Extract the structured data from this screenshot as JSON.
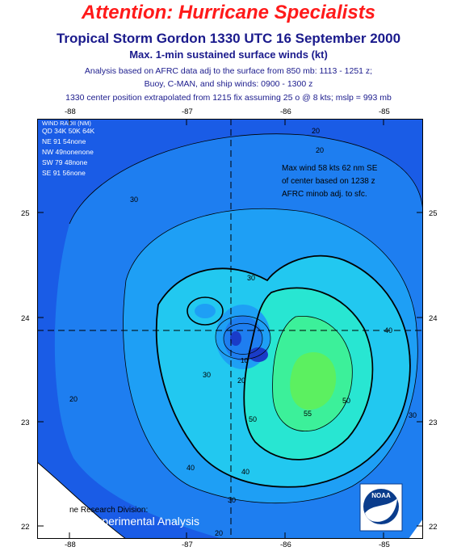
{
  "header": {
    "attention": "Attention:  Hurricane Specialists",
    "title": "Tropical Storm Gordon 1330 UTC 16 September 2000",
    "subtitle": "Max. 1-min sustained surface winds (kt)",
    "line1": "Analysis based on AFRC data adj to the surface from 850 mb: 1113 - 1251 z;",
    "line2": "Buoy, C-MAN, and ship winds: 0900 - 1300 z",
    "line3": "1330 center position extrapolated from 1215 fix assuming 25 o @ 8 kts; mslp = 993 mb"
  },
  "axes": {
    "lon_top": [
      "-88",
      "-87",
      "-86",
      "-85"
    ],
    "lon_bottom": [
      "-88",
      "-87",
      "-86",
      "-85"
    ],
    "lat_left": [
      "25",
      "24",
      "23",
      "22"
    ],
    "lat_right": [
      "25",
      "24",
      "23",
      "22"
    ]
  },
  "wind_radii": {
    "title": "WIND RADII (NM)",
    "header": "QD 34K 50K 64K",
    "rows": [
      "NE  91   54none",
      "NW  49nonenone",
      "SW  79   48none",
      "SE  91   56none"
    ]
  },
  "note": [
    "Max wind 58 kts 62 nm SE",
    "of center based on 1238 z",
    "AFRC minob adj. to sfc."
  ],
  "contour_labels": {
    "c20": "20",
    "c30": "30",
    "c40": "40",
    "c50": "50",
    "c55": "55",
    "c10": "10"
  },
  "footer": {
    "division": "ne Research Division:",
    "experimental": "Experimental Analysis"
  },
  "logo": "NOAA",
  "colors": {
    "ocean_outer": "#1a5ce6",
    "band_20": "#1e7ef0",
    "band_30": "#1e9ff5",
    "band_40": "#22c8f0",
    "band_50": "#28e6d2",
    "band_55": "#3cf09a",
    "core": "#5cf060",
    "eye_dark": "#1a3cc8",
    "title": "#1a1a8c",
    "attention": "#ff1a1a"
  }
}
